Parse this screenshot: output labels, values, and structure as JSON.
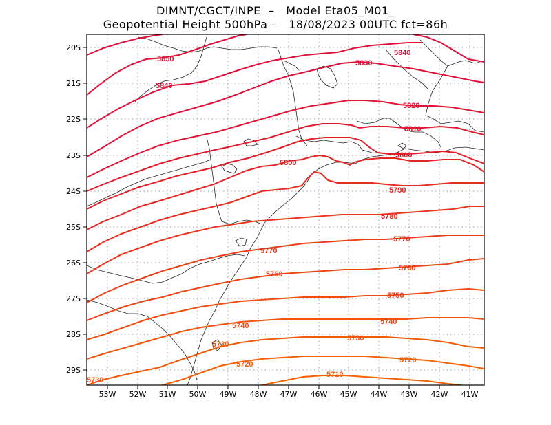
{
  "title": {
    "line1": "DIMNT/CGCT/INPE  –   Model Eta05_M01_",
    "line2": "Geopotential Height 500hPa –   18/08/2023 00UTC fct=86h"
  },
  "axes": {
    "lon_labels": [
      "53W",
      "52W",
      "51W",
      "50W",
      "49W",
      "48W",
      "47W",
      "46W",
      "45W",
      "44W",
      "43W",
      "42W",
      "41W"
    ],
    "lat_labels": [
      "20S",
      "21S",
      "22S",
      "23S",
      "24S",
      "25S",
      "26S",
      "27S",
      "28S",
      "29S"
    ]
  },
  "colors": {
    "frame": "#000000",
    "grid": "#9a9a9a",
    "coast": "#222222"
  },
  "contours": [
    {
      "value": 5850,
      "color": "#e0103a"
    },
    {
      "value": 5840,
      "color": "#e0103a"
    },
    {
      "value": 5830,
      "color": "#e0103a"
    },
    {
      "value": 5820,
      "color": "#e21434"
    },
    {
      "value": 5810,
      "color": "#e21a2e"
    },
    {
      "value": 5800,
      "color": "#e41e28"
    },
    {
      "value": 5790,
      "color": "#e62424"
    },
    {
      "value": 5780,
      "color": "#e82c20"
    },
    {
      "value": 5770,
      "color": "#ea341c"
    },
    {
      "value": 5760,
      "color": "#ec3c18"
    },
    {
      "value": 5750,
      "color": "#ee4414"
    },
    {
      "value": 5740,
      "color": "#f04c10"
    },
    {
      "value": 5730,
      "color": "#f2540c"
    },
    {
      "value": 5720,
      "color": "#f25a08"
    },
    {
      "value": 5710,
      "color": "#f46004"
    }
  ],
  "contour_labels": [
    {
      "text": "5850",
      "contour": 5850
    },
    {
      "text": "5840",
      "contour": 5840
    },
    {
      "text": "5840",
      "contour": 5840
    },
    {
      "text": "5830",
      "contour": 5830
    },
    {
      "text": "5820",
      "contour": 5820
    },
    {
      "text": "5810",
      "contour": 5810
    },
    {
      "text": "5800",
      "contour": 5800
    },
    {
      "text": "5800",
      "contour": 5800
    },
    {
      "text": "5790",
      "contour": 5790
    },
    {
      "text": "5780",
      "contour": 5780
    },
    {
      "text": "5770",
      "contour": 5770
    },
    {
      "text": "5770",
      "contour": 5770
    },
    {
      "text": "5760",
      "contour": 5760
    },
    {
      "text": "5760",
      "contour": 5760
    },
    {
      "text": "5750",
      "contour": 5750
    },
    {
      "text": "5740",
      "contour": 5740
    },
    {
      "text": "5740",
      "contour": 5740
    },
    {
      "text": "5730",
      "contour": 5730
    },
    {
      "text": "5730",
      "contour": 5730
    },
    {
      "text": "5730",
      "contour": 5730
    },
    {
      "text": "5720",
      "contour": 5720
    },
    {
      "text": "5720",
      "contour": 5720
    },
    {
      "text": "5710",
      "contour": 5710
    }
  ]
}
